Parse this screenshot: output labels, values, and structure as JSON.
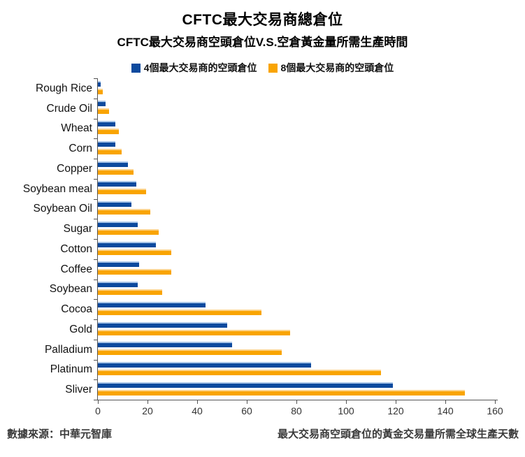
{
  "header": {
    "title": "CFTC最大交易商總倉位",
    "subtitle": "CFTC最大交易商空頭倉位V.S.空倉黃金量所需生產時間"
  },
  "footer": {
    "source": "數據來源：中華元智庫",
    "axis_note": "最大交易商空頭倉位的黃金交易量所需全球生產天數"
  },
  "colors": {
    "series_blue": "#0d4a9e",
    "series_blue_highlight": "#aac6e8",
    "series_orange": "#f9a402",
    "series_orange_highlight": "#fcd38b",
    "axis": "#555555",
    "text": "#111111"
  },
  "chart_data": {
    "type": "bar",
    "orientation": "horizontal",
    "title": "CFTC最大交易商總倉位",
    "subtitle": "CFTC最大交易商空頭倉位V.S.空倉黃金量所需生產時間",
    "xlabel": "最大交易商空頭倉位的黃金交易量所需全球生產天數",
    "ylabel": "",
    "xlim": [
      0,
      160
    ],
    "xticks": [
      0,
      20,
      40,
      60,
      80,
      100,
      120,
      140,
      160
    ],
    "grid": false,
    "legend_position": "top",
    "categories": [
      "Rough Rice",
      "Crude Oil",
      "Wheat",
      "Corn",
      "Copper",
      "Soybean meal",
      "Soybean Oil",
      "Sugar",
      "Cotton",
      "Coffee",
      "Soybean",
      "Cocoa",
      "Gold",
      "Palladium",
      "Platinum",
      "Sliver"
    ],
    "series": [
      {
        "name": "4個最大交易商的空頭倉位",
        "color": "#0d4a9e",
        "values": [
          1,
          3,
          7,
          7,
          12,
          15.5,
          13.5,
          16,
          23.5,
          16.5,
          16,
          43.5,
          52,
          54,
          86,
          119
        ]
      },
      {
        "name": "8個最大交易商的空頭倉位",
        "color": "#f9a402",
        "values": [
          2,
          4.5,
          8.5,
          9.5,
          14.5,
          19.5,
          21,
          24.5,
          29.5,
          29.5,
          26,
          66,
          77.5,
          74,
          114,
          148
        ]
      }
    ]
  }
}
